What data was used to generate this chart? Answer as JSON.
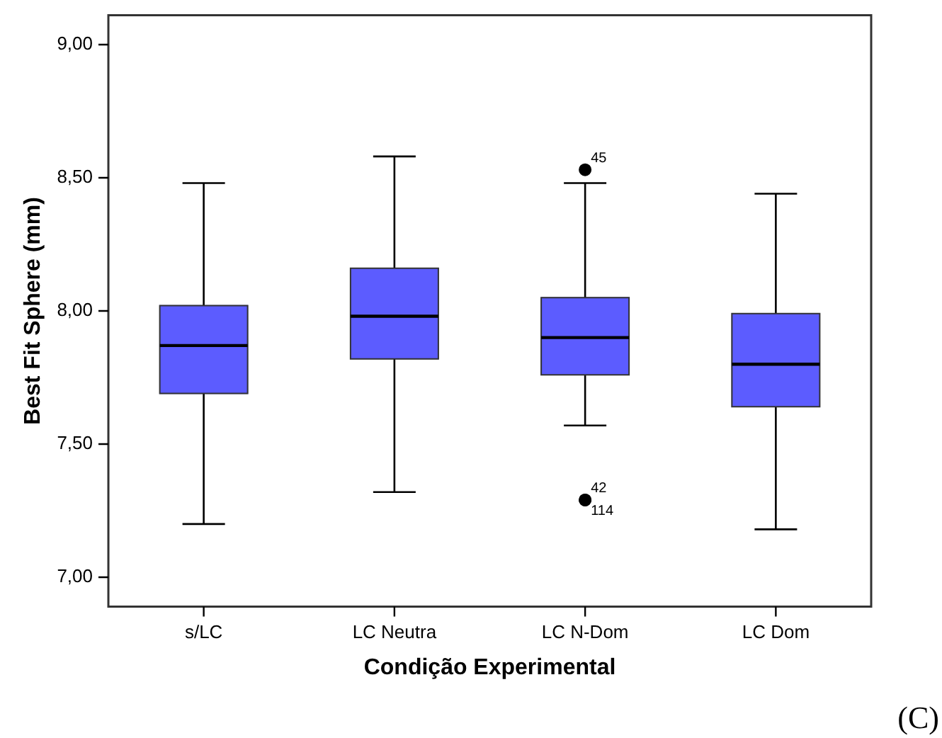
{
  "chart_data": {
    "type": "box",
    "xlabel": "Condição Experimental",
    "ylabel": "Best Fit Sphere (mm)",
    "categories": [
      "s/LC",
      "LC Neutra",
      "LC N-Dom",
      "LC Dom"
    ],
    "color": "#5c5cff",
    "boxes": [
      {
        "low": 7.2,
        "q1": 7.69,
        "median": 7.87,
        "q3": 8.02,
        "high": 8.48
      },
      {
        "low": 7.32,
        "q1": 7.82,
        "median": 7.98,
        "q3": 8.16,
        "high": 8.58
      },
      {
        "low": 7.57,
        "q1": 7.76,
        "median": 7.9,
        "q3": 8.05,
        "high": 8.48,
        "outliers": [
          8.53,
          7.29,
          7.29
        ]
      },
      {
        "low": 7.18,
        "q1": 7.64,
        "median": 7.8,
        "q3": 7.99,
        "high": 8.44
      }
    ],
    "ylim": [
      6.89,
      9.11
    ],
    "yticks": [
      {
        "value": 7,
        "label": "7,00"
      },
      {
        "value": 7.5,
        "label": "7,50"
      },
      {
        "value": 8,
        "label": "8,00"
      },
      {
        "value": 8.5,
        "label": "8,50"
      },
      {
        "value": 9,
        "label": "9,00"
      }
    ],
    "grid": false,
    "annotations": [
      "45",
      "42",
      "114",
      "(C)"
    ]
  }
}
